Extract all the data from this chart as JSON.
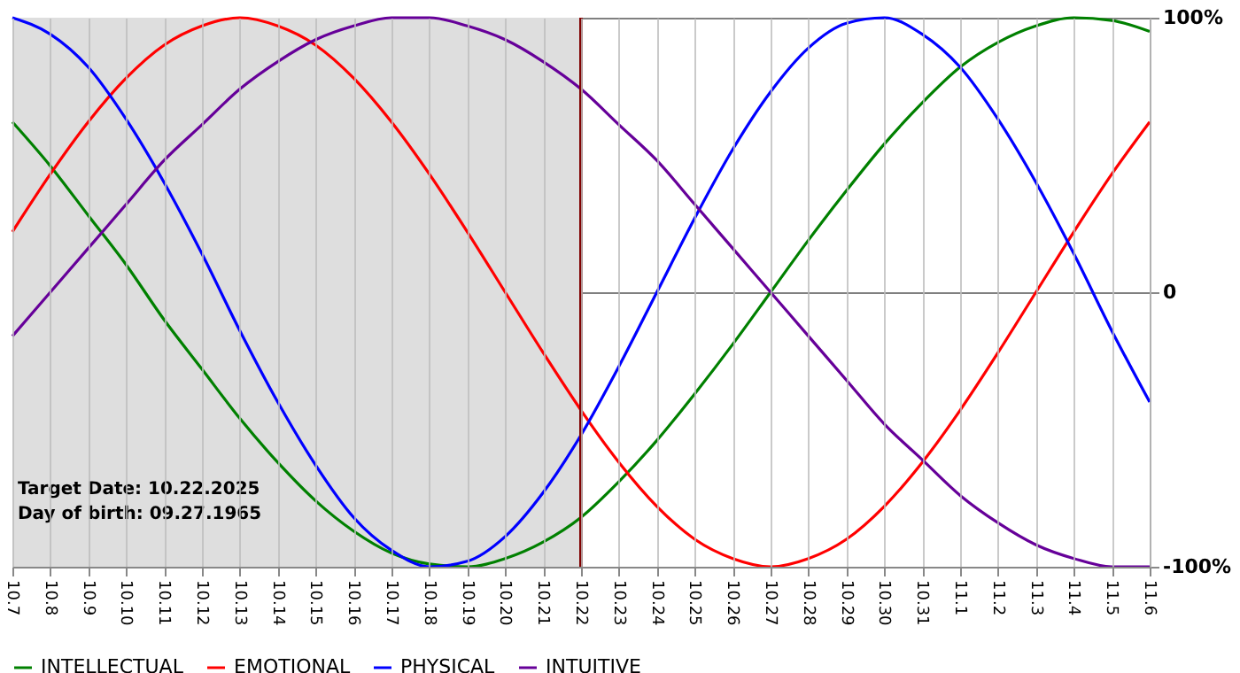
{
  "chart_data": {
    "type": "line",
    "categories": [
      "10.7",
      "10.8",
      "10.9",
      "10.10",
      "10.11",
      "10.12",
      "10.13",
      "10.14",
      "10.15",
      "10.16",
      "10.17",
      "10.18",
      "10.19",
      "10.20",
      "10.21",
      "10.22",
      "10.23",
      "10.24",
      "10.25",
      "10.26",
      "10.27",
      "10.28",
      "10.29",
      "10.30",
      "10.31",
      "11.1",
      "11.2",
      "11.3",
      "11.4",
      "11.5",
      "11.6"
    ],
    "series": [
      {
        "name": "INTELLECTUAL",
        "color": "#008000",
        "values": [
          62,
          46,
          28,
          10,
          -10,
          -28,
          -46,
          -62,
          -76,
          -87,
          -95,
          -99,
          -100,
          -97,
          -91,
          -82,
          -69,
          -54,
          -37,
          -19,
          0,
          19,
          37,
          54,
          69,
          82,
          91,
          97,
          100,
          99,
          95
        ]
      },
      {
        "name": "EMOTIONAL",
        "color": "#ff0000",
        "values": [
          22,
          43,
          62,
          78,
          90,
          97,
          100,
          97,
          90,
          78,
          62,
          43,
          22,
          0,
          -22,
          -43,
          -62,
          -78,
          -90,
          -97,
          -100,
          -97,
          -90,
          -78,
          -62,
          -43,
          -22,
          0,
          22,
          43,
          62
        ]
      },
      {
        "name": "PHYSICAL",
        "color": "#0000ff",
        "values": [
          100,
          94,
          82,
          63,
          40,
          14,
          -14,
          -40,
          -63,
          -82,
          -94,
          -100,
          -98,
          -89,
          -73,
          -52,
          -27,
          0,
          27,
          52,
          73,
          89,
          98,
          100,
          94,
          82,
          63,
          40,
          14,
          -14,
          -40
        ]
      },
      {
        "name": "INTUITIVE",
        "color": "#660099",
        "values": [
          -16,
          0,
          16,
          32,
          48,
          61,
          74,
          84,
          92,
          97,
          100,
          100,
          97,
          92,
          84,
          74,
          61,
          48,
          32,
          16,
          0,
          -16,
          -32,
          -48,
          -61,
          -74,
          -84,
          -92,
          -97,
          -100,
          -100
        ]
      }
    ],
    "ylim": [
      -100,
      100
    ],
    "yticks": [
      {
        "value": -100,
        "label": "-100%"
      },
      0,
      {
        "value": 100,
        "label": "100%"
      }
    ],
    "ref_lines": [
      {
        "axis": "x",
        "value": "10.22",
        "color": "#800000"
      }
    ],
    "bands": [
      {
        "axis": "x",
        "from": "10.7",
        "to": "10.22",
        "color": "#dedede"
      }
    ],
    "annotations": [
      "Target Date: 10.22.2025",
      "Day of birth: 09.27.1965"
    ],
    "grid": true,
    "legend": "bottom",
    "marker": "none",
    "line_style": "solid"
  }
}
